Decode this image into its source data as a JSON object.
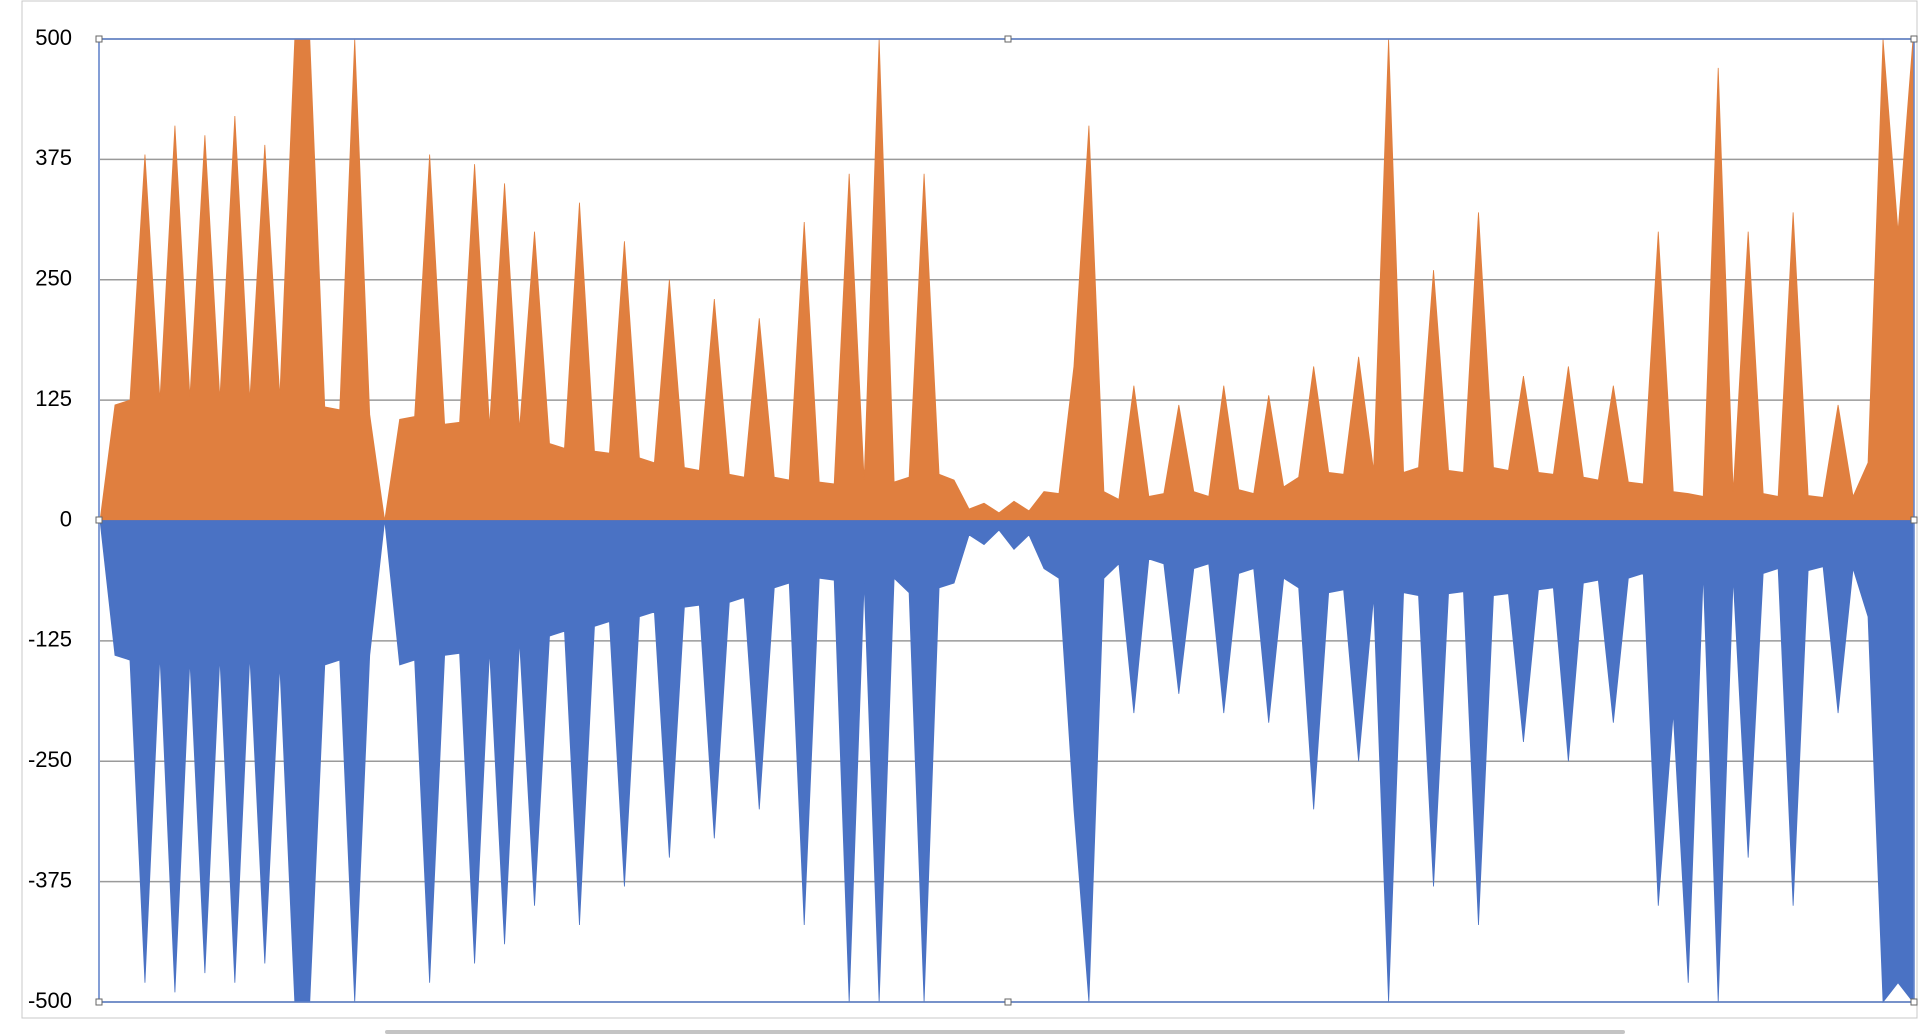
{
  "chart_data": {
    "type": "area",
    "ylim": [
      -500,
      500
    ],
    "yticks": [
      500,
      375,
      250,
      125,
      0,
      -125,
      -250,
      -375,
      -500
    ],
    "grid": true,
    "series": [
      {
        "color": "#e07f3f",
        "values": [
          0,
          120,
          125,
          380,
          125,
          410,
          128,
          400,
          126,
          420,
          125,
          390,
          128,
          500,
          500,
          118,
          115,
          500,
          110,
          0,
          105,
          108,
          380,
          100,
          102,
          370,
          98,
          350,
          95,
          300,
          80,
          75,
          330,
          72,
          70,
          290,
          65,
          60,
          250,
          55,
          52,
          230,
          48,
          45,
          210,
          45,
          42,
          310,
          40,
          38,
          360,
          42,
          500,
          40,
          45,
          360,
          48,
          42,
          12,
          18,
          8,
          20,
          10,
          30,
          28,
          160,
          410,
          30,
          22,
          140,
          25,
          28,
          120,
          30,
          25,
          140,
          32,
          28,
          130,
          35,
          45,
          160,
          50,
          48,
          170,
          52,
          500,
          50,
          55,
          260,
          52,
          50,
          320,
          55,
          52,
          150,
          50,
          48,
          160,
          45,
          42,
          140,
          40,
          38,
          300,
          30,
          28,
          25,
          470,
          30,
          300,
          28,
          25,
          320,
          26,
          24,
          120,
          25,
          60,
          500,
          300,
          500
        ]
      },
      {
        "color": "#4a72c4",
        "values": [
          0,
          -140,
          -145,
          -480,
          -140,
          -490,
          -145,
          -470,
          -142,
          -480,
          -140,
          -460,
          -150,
          -500,
          -500,
          -150,
          -145,
          -500,
          -140,
          0,
          -150,
          -145,
          -480,
          -140,
          -138,
          -460,
          -135,
          -440,
          -125,
          -400,
          -120,
          -115,
          -420,
          -110,
          -105,
          -380,
          -100,
          -95,
          -350,
          -90,
          -88,
          -330,
          -85,
          -80,
          -300,
          -70,
          -65,
          -420,
          -60,
          -62,
          -500,
          -65,
          -500,
          -60,
          -75,
          -500,
          -70,
          -65,
          -15,
          -25,
          -10,
          -30,
          -15,
          -50,
          -60,
          -300,
          -500,
          -60,
          -45,
          -200,
          -40,
          -45,
          -180,
          -50,
          -45,
          -200,
          -55,
          -50,
          -210,
          -60,
          -70,
          -300,
          -75,
          -72,
          -250,
          -80,
          -500,
          -75,
          -78,
          -380,
          -76,
          -74,
          -420,
          -78,
          -76,
          -230,
          -72,
          -70,
          -250,
          -65,
          -62,
          -210,
          -60,
          -55,
          -400,
          -200,
          -480,
          -55,
          -500,
          -60,
          -350,
          -55,
          -50,
          -400,
          -52,
          -48,
          -200,
          -50,
          -100,
          -500,
          -480,
          -500
        ]
      }
    ]
  }
}
